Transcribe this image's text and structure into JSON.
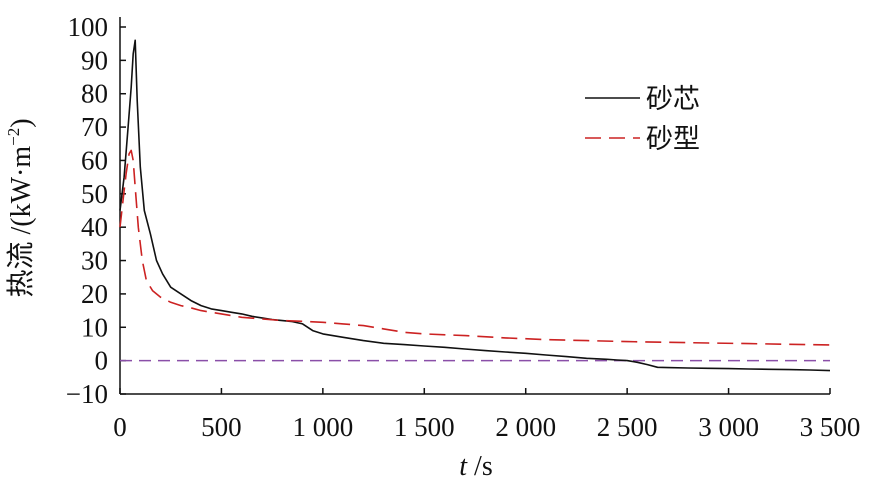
{
  "chart_data": {
    "type": "line",
    "title": "",
    "xlabel": {
      "var": "t",
      "unit": " /s"
    },
    "ylabel": {
      "quantity": "热流 /(kW·m",
      "sup": "−2",
      "close": ")"
    },
    "xlim": [
      0,
      3500
    ],
    "ylim": [
      -10,
      100
    ],
    "x_ticks": [
      0,
      500,
      1000,
      1500,
      2000,
      2500,
      3000,
      3500
    ],
    "x_tick_labels": [
      "0",
      "500",
      "1 000",
      "1 500",
      "2 000",
      "2 500",
      "3 000",
      "3 500"
    ],
    "y_ticks": [
      -10,
      0,
      10,
      20,
      30,
      40,
      50,
      60,
      70,
      80,
      90,
      100
    ],
    "y_tick_labels": [
      "−10",
      "0",
      "10",
      "20",
      "30",
      "40",
      "50",
      "60",
      "70",
      "80",
      "90",
      "100"
    ],
    "grid": false,
    "legend_position": "upper-right",
    "reference_line": {
      "y": 0,
      "color": "#8a4fa8",
      "style": "dashed"
    },
    "series": [
      {
        "name": "砂芯",
        "color": "#111111",
        "style": "solid",
        "x": [
          0,
          20,
          40,
          55,
          65,
          75,
          85,
          100,
          120,
          150,
          180,
          210,
          250,
          300,
          350,
          400,
          450,
          500,
          550,
          600,
          650,
          700,
          750,
          800,
          850,
          900,
          950,
          1000,
          1100,
          1200,
          1300,
          1400,
          1500,
          1600,
          1700,
          1800,
          1900,
          2000,
          2100,
          2200,
          2300,
          2400,
          2450,
          2500,
          2550,
          2600,
          2650,
          2700,
          2800,
          2900,
          3000,
          3100,
          3200,
          3300,
          3400,
          3500
        ],
        "y": [
          45,
          55,
          70,
          82,
          92,
          96,
          78,
          58,
          45,
          38,
          30,
          26,
          22,
          20,
          18,
          16.5,
          15.5,
          15,
          14.5,
          14,
          13.3,
          12.8,
          12.3,
          12,
          11.7,
          11,
          9,
          8,
          7,
          6,
          5.2,
          4.8,
          4.4,
          4,
          3.5,
          3,
          2.6,
          2.2,
          1.7,
          1.2,
          0.7,
          0.4,
          0.2,
          0,
          -0.5,
          -1.2,
          -2,
          -2.1,
          -2.2,
          -2.3,
          -2.4,
          -2.5,
          -2.6,
          -2.7,
          -2.8,
          -3
        ]
      },
      {
        "name": "砂型",
        "color": "#cc2222",
        "style": "dashed",
        "x": [
          0,
          15,
          30,
          45,
          55,
          65,
          75,
          90,
          110,
          130,
          160,
          200,
          250,
          300,
          350,
          400,
          500,
          600,
          700,
          800,
          900,
          1000,
          1100,
          1200,
          1300,
          1400,
          1500,
          1700,
          1900,
          2100,
          2300,
          2500,
          2700,
          2900,
          3100,
          3300,
          3500
        ],
        "y": [
          40,
          48,
          56,
          62,
          63,
          60,
          52,
          40,
          30,
          24,
          21,
          19,
          17.5,
          16.5,
          15.8,
          15,
          14,
          13,
          12.5,
          12,
          11.8,
          11.5,
          11,
          10.5,
          9.5,
          8.5,
          8,
          7.5,
          6.8,
          6.3,
          6,
          5.7,
          5.5,
          5.3,
          5.1,
          4.9,
          4.7
        ]
      }
    ]
  }
}
